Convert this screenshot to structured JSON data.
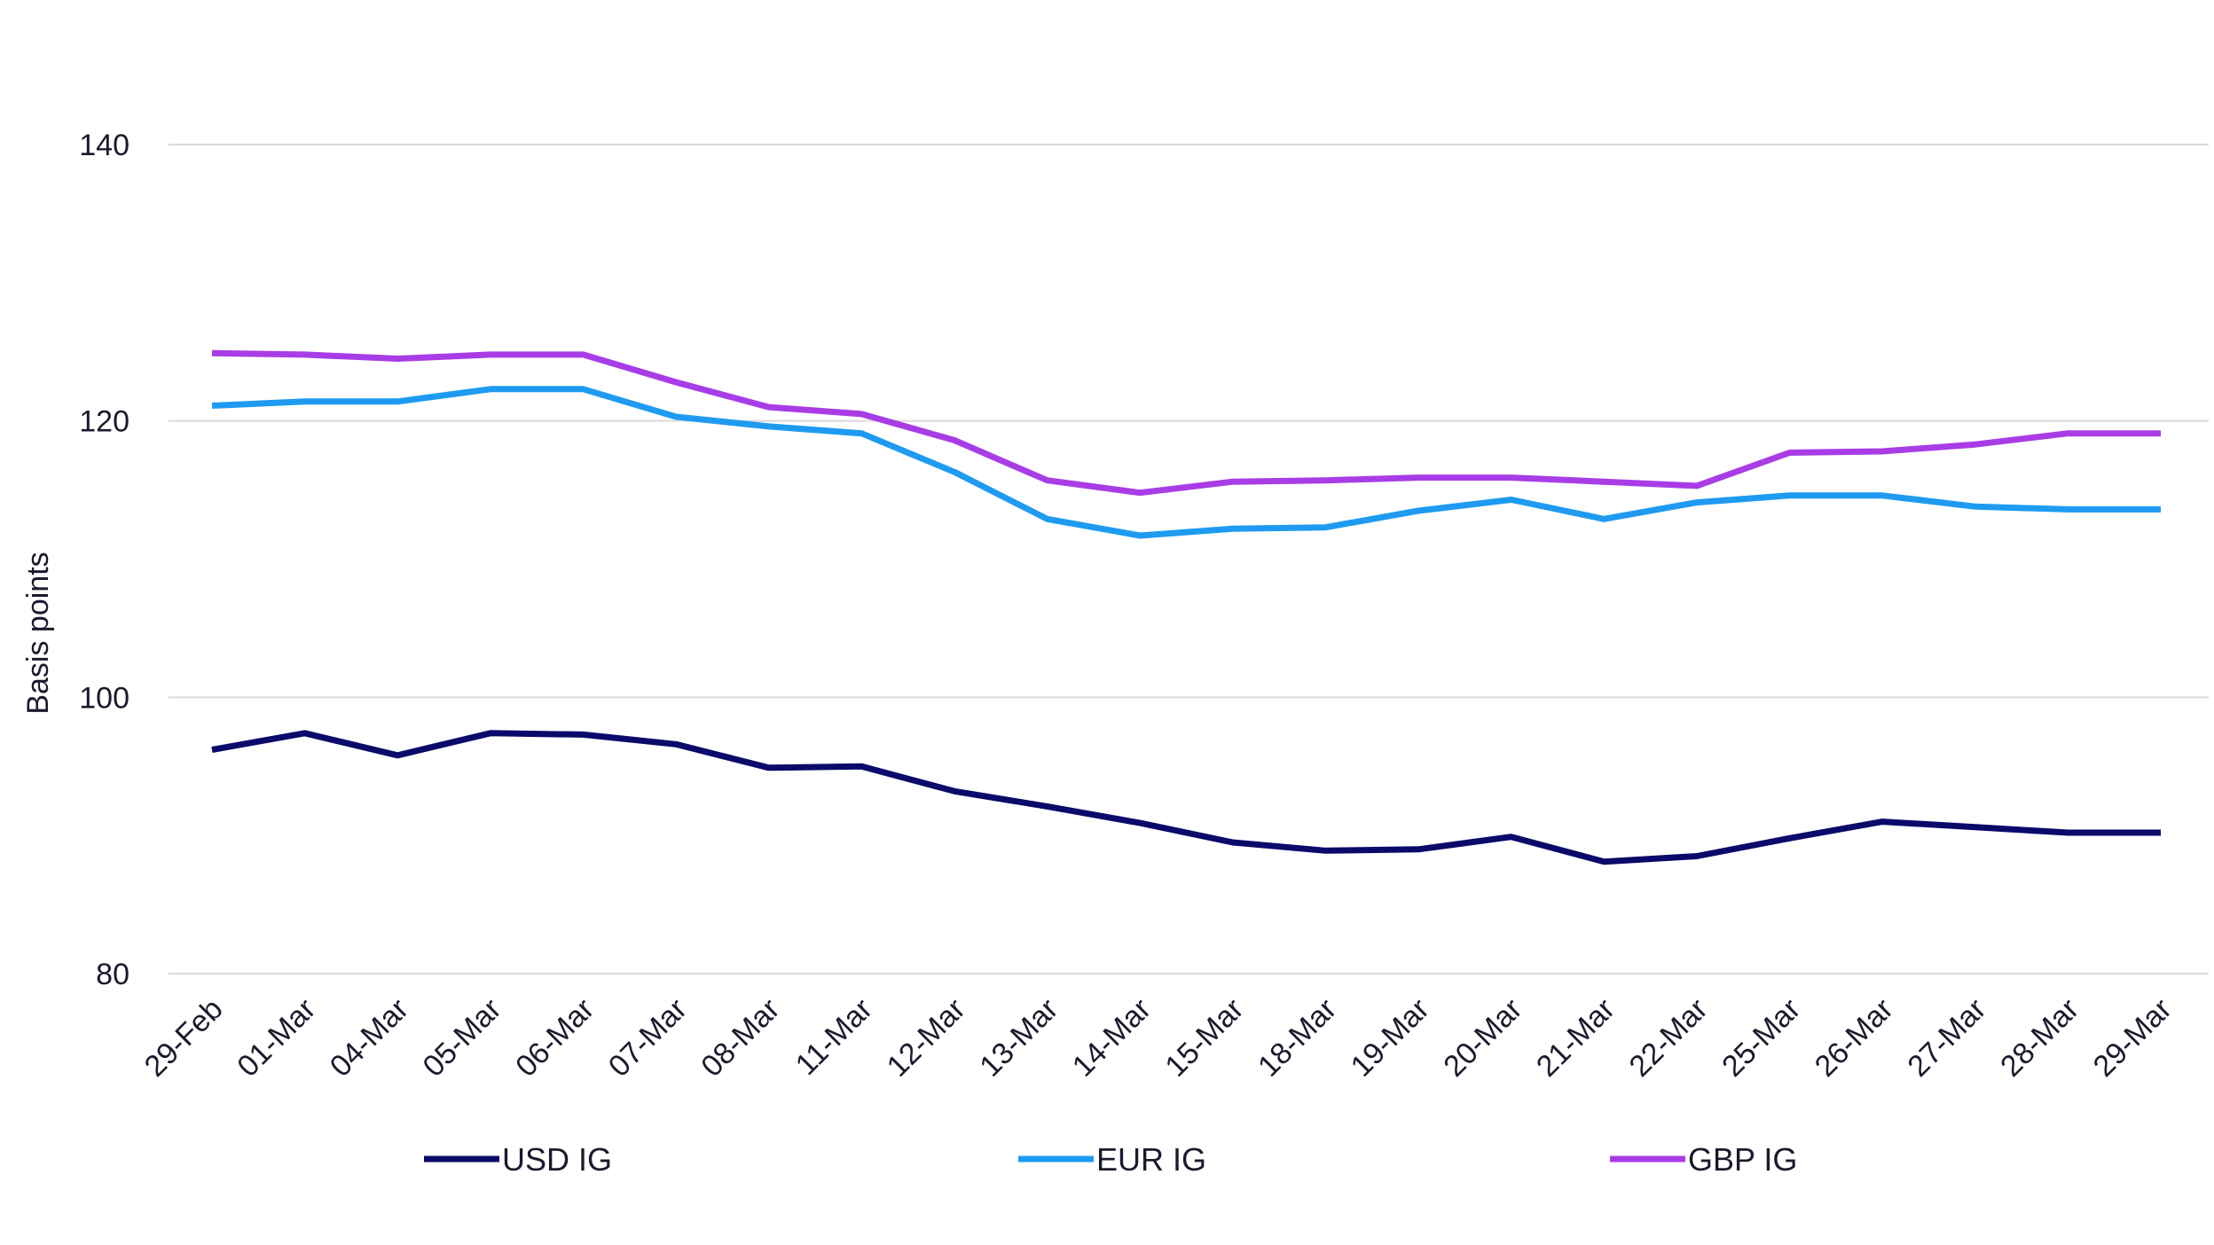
{
  "chart_data": {
    "type": "line",
    "title": "",
    "xlabel": "",
    "ylabel": "Basis points",
    "ylim": [
      80,
      140
    ],
    "yticks": [
      80,
      100,
      120,
      140
    ],
    "grid": true,
    "legend_position": "bottom",
    "categories": [
      "29-Feb",
      "01-Mar",
      "04-Mar",
      "05-Mar",
      "06-Mar",
      "07-Mar",
      "08-Mar",
      "11-Mar",
      "12-Mar",
      "13-Mar",
      "14-Mar",
      "15-Mar",
      "18-Mar",
      "19-Mar",
      "20-Mar",
      "21-Mar",
      "22-Mar",
      "25-Mar",
      "26-Mar",
      "27-Mar",
      "28-Mar",
      "29-Mar"
    ],
    "series": [
      {
        "name": "USD IG",
        "color": "#0a0a6b",
        "values": [
          96.2,
          97.4,
          95.8,
          97.4,
          97.3,
          96.6,
          94.9,
          95.0,
          93.2,
          92.1,
          90.9,
          89.5,
          88.9,
          89.0,
          89.9,
          88.1,
          88.5,
          89.8,
          91.0,
          90.6,
          90.2,
          90.2
        ]
      },
      {
        "name": "EUR IG",
        "color": "#1e9bf0",
        "values": [
          121.1,
          121.4,
          121.4,
          122.3,
          122.3,
          120.3,
          119.6,
          119.1,
          116.3,
          112.9,
          111.7,
          112.2,
          112.3,
          113.5,
          114.3,
          112.9,
          114.1,
          114.6,
          114.6,
          113.8,
          113.6,
          113.6
        ]
      },
      {
        "name": "GBP IG",
        "color": "#a83de6",
        "values": [
          124.9,
          124.8,
          124.5,
          124.8,
          124.8,
          122.8,
          121.0,
          120.5,
          118.6,
          115.7,
          114.8,
          115.6,
          115.7,
          115.9,
          115.9,
          115.6,
          115.3,
          117.7,
          117.8,
          118.3,
          119.1,
          119.1
        ]
      }
    ]
  }
}
